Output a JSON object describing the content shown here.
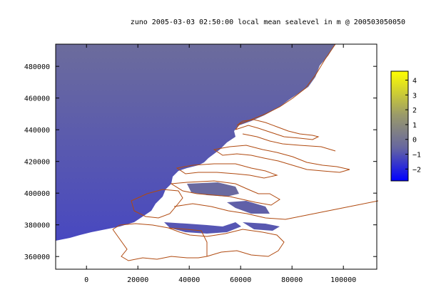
{
  "title": "zuno 2005-03-03 02:50:00 local mean sealevel in m @ 200503050050",
  "chart_data": {
    "type": "heatmap",
    "title": "zuno 2005-03-03 02:50:00 local mean sealevel in m @ 200503050050",
    "xlabel": "",
    "ylabel": "",
    "xlim": [
      -12000,
      113000
    ],
    "ylim": [
      352000,
      494000
    ],
    "x_ticks": [
      0,
      20000,
      40000,
      60000,
      80000,
      100000
    ],
    "x_tick_labels": [
      "0",
      "20000",
      "40000",
      "60000",
      "80000",
      "100000"
    ],
    "y_ticks": [
      360000,
      380000,
      400000,
      420000,
      440000,
      460000,
      480000
    ],
    "y_tick_labels": [
      "360000",
      "380000",
      "400000",
      "420000",
      "440000",
      "460000",
      "480000"
    ],
    "colorbar": {
      "range": [
        -2.8,
        4.6
      ],
      "ticks": [
        -2,
        -1,
        0,
        1,
        2,
        3,
        4
      ],
      "tick_labels": [
        "−2",
        "−1",
        "0",
        "1",
        "2",
        "3",
        "4"
      ],
      "colors": [
        "#0000ff",
        "#6666a0",
        "#9a9a6a",
        "#ffff00"
      ]
    },
    "sea_color_top": "#6c6c9c",
    "sea_color_bottom": "#4848c0",
    "coastline_color": "#b04a10",
    "grid": false
  }
}
